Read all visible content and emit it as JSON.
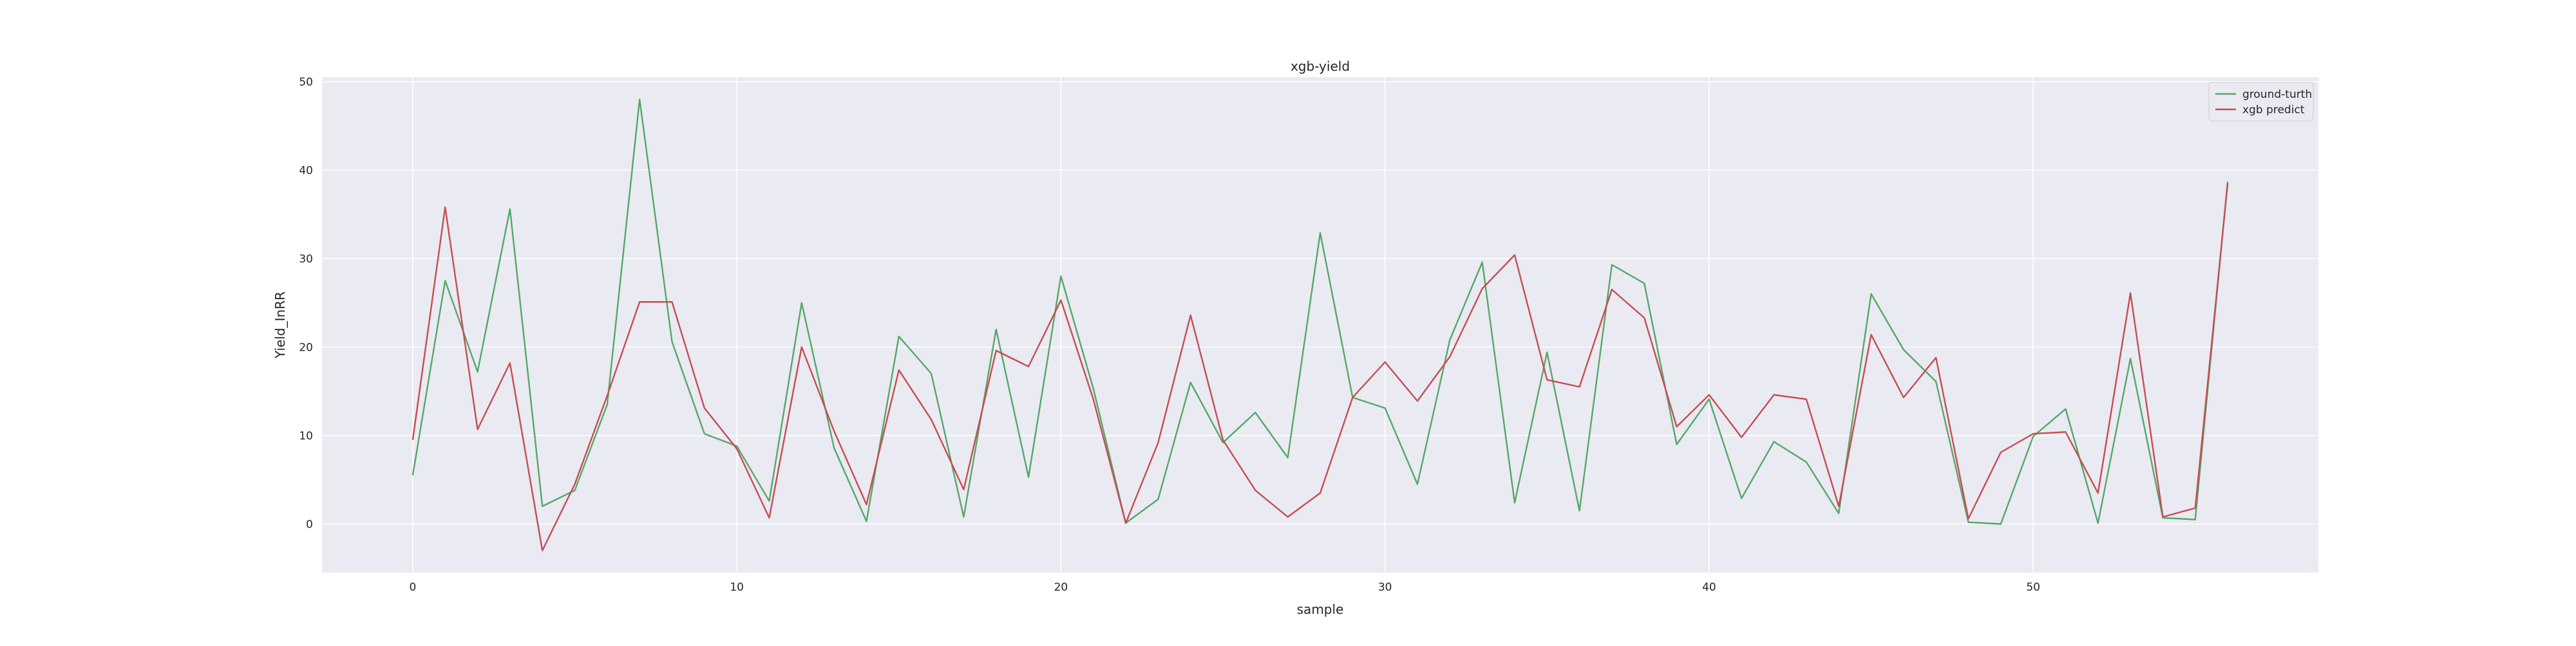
{
  "chart_data": {
    "type": "line",
    "title": "xgb-yield",
    "xlabel": "sample",
    "ylabel": "Yield_InRR",
    "xlim": [
      -2.8,
      58.8
    ],
    "ylim": [
      -5.5,
      50.5
    ],
    "xticks": [
      0,
      10,
      20,
      30,
      40,
      50
    ],
    "yticks": [
      0,
      10,
      20,
      30,
      40,
      50
    ],
    "grid": true,
    "legend_position": "top-right",
    "x": [
      0,
      1,
      2,
      3,
      4,
      5,
      6,
      7,
      8,
      9,
      10,
      11,
      12,
      13,
      14,
      15,
      16,
      17,
      18,
      19,
      20,
      21,
      22,
      23,
      24,
      25,
      26,
      27,
      28,
      29,
      30,
      31,
      32,
      33,
      34,
      35,
      36,
      37,
      38,
      39,
      40,
      41,
      42,
      43,
      44,
      45,
      46,
      47,
      48,
      49,
      50,
      51,
      52,
      53,
      54,
      55,
      56
    ],
    "series": [
      {
        "name": "ground-turth",
        "color": "#55a868",
        "values": [
          5.5,
          27.5,
          17.2,
          35.6,
          2.0,
          3.8,
          13.5,
          48.0,
          20.6,
          10.2,
          8.8,
          2.6,
          25.0,
          8.6,
          0.3,
          21.2,
          17.0,
          0.8,
          22.0,
          5.3,
          28.0,
          15.3,
          0.1,
          2.8,
          16.0,
          9.2,
          12.6,
          7.5,
          32.9,
          14.3,
          13.1,
          4.5,
          20.8,
          29.6,
          2.4,
          19.4,
          1.5,
          29.3,
          27.2,
          9.0,
          14.1,
          2.9,
          9.3,
          7.0,
          1.2,
          26.0,
          19.7,
          16.1,
          0.2,
          0.0,
          9.9,
          13.0,
          0.1,
          18.7,
          0.7,
          0.5,
          38.7
        ]
      },
      {
        "name": "xgb predict",
        "color": "#c44e52",
        "values": [
          9.5,
          35.8,
          10.7,
          18.2,
          -3.0,
          4.5,
          14.5,
          25.1,
          25.1,
          13.1,
          8.5,
          0.7,
          20.0,
          10.5,
          2.2,
          17.4,
          11.8,
          3.9,
          19.6,
          17.8,
          25.3,
          14.1,
          0.1,
          9.2,
          23.6,
          9.5,
          3.8,
          0.8,
          3.5,
          14.3,
          18.3,
          13.9,
          18.9,
          26.6,
          30.4,
          16.3,
          15.5,
          26.5,
          23.3,
          11.0,
          14.6,
          9.8,
          14.6,
          14.1,
          2.0,
          21.4,
          14.3,
          18.8,
          0.6,
          8.1,
          10.2,
          10.4,
          3.5,
          26.1,
          0.8,
          1.8,
          38.5
        ]
      }
    ]
  },
  "colors": {
    "plot_background": "#eaeaf2",
    "grid": "#ffffff"
  }
}
